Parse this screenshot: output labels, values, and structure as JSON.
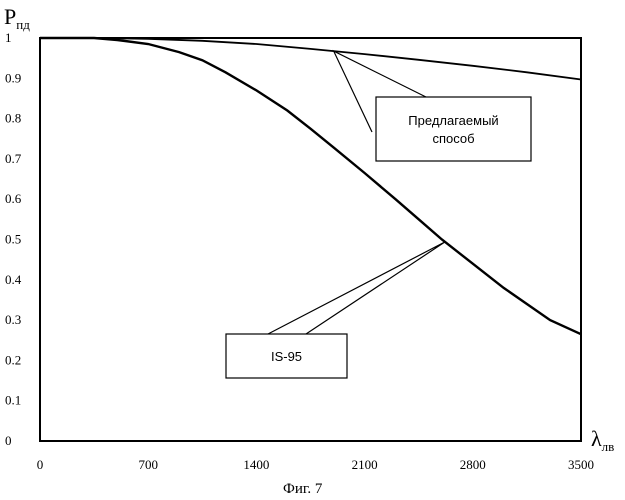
{
  "chart_data": {
    "type": "line",
    "ylabel": {
      "main": "P",
      "sub": "пд"
    },
    "xlabel": {
      "main": "λ",
      "sub": "лв"
    },
    "caption": "Фиг. 7",
    "xlim": [
      0,
      3500
    ],
    "ylim": [
      0,
      1
    ],
    "x_ticks": [
      "0",
      "700",
      "1400",
      "2100",
      "2800",
      "3500"
    ],
    "y_ticks": [
      "0",
      "0.1",
      "0.2",
      "0.3",
      "0.4",
      "0.5",
      "0.6",
      "0.7",
      "0.8",
      "0.9",
      "1"
    ],
    "grid": false,
    "series": [
      {
        "name": "Предлагаемый способ",
        "callout_lines": [
          "Предлагаемый",
          "способ"
        ],
        "x": [
          0,
          350,
          700,
          1050,
          1400,
          1750,
          2100,
          2450,
          2800,
          3150,
          3500
        ],
        "y": [
          1.0,
          1.0,
          0.998,
          0.993,
          0.985,
          0.973,
          0.96,
          0.946,
          0.931,
          0.915,
          0.897
        ]
      },
      {
        "name": "IS-95",
        "callout_lines": [
          "IS-95"
        ],
        "x": [
          0,
          350,
          500,
          700,
          900,
          1050,
          1200,
          1400,
          1600,
          1750,
          1900,
          2100,
          2300,
          2450,
          2600,
          2800,
          3000,
          3150,
          3300,
          3500
        ],
        "y": [
          1.0,
          1.0,
          0.995,
          0.985,
          0.965,
          0.945,
          0.915,
          0.87,
          0.82,
          0.775,
          0.728,
          0.665,
          0.6,
          0.55,
          0.5,
          0.44,
          0.38,
          0.34,
          0.3,
          0.265
        ]
      }
    ]
  }
}
